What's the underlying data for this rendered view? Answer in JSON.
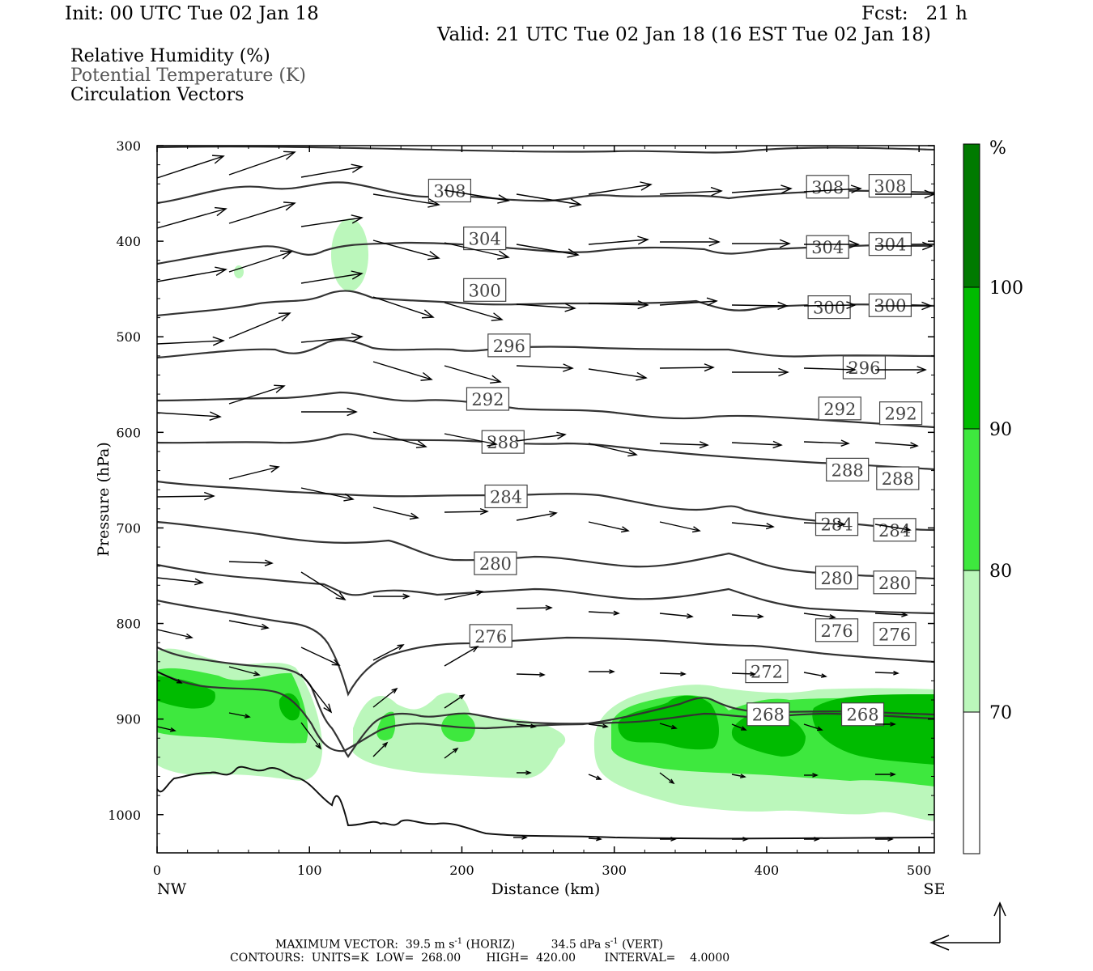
{
  "header": {
    "init": "Init: 00 UTC Tue 02 Jan 18",
    "fcst": "Fcst:   21 h",
    "valid": "Valid: 21 UTC Tue 02 Jan 18 (16 EST Tue 02 Jan 18)"
  },
  "legend": {
    "rh": "Relative Humidity (%)",
    "theta": "Potential Temperature (K)",
    "vectors": "Circulation Vectors"
  },
  "footer": {
    "max_vector_prefix": "MAXIMUM VECTOR:  39.5 m s",
    "max_vector_horiz": "(HORIZ)",
    "max_vector_vert_prefix": "34.5 dPa s",
    "max_vector_vert": "(VERT)",
    "exp": "-1",
    "contours": "CONTOURS:  UNITS=K  LOW=  268.00       HIGH=  420.00        INTERVAL=    4.0000"
  },
  "chart_data": {
    "type": "cross-section",
    "xlabel": "Distance (km)",
    "ylabel": "Pressure (hPa)",
    "x_ticks": [
      0,
      100,
      200,
      300,
      400,
      500
    ],
    "y_ticks": [
      300,
      400,
      500,
      600,
      700,
      800,
      900,
      1000
    ],
    "xlim": [
      0,
      510
    ],
    "ylim": [
      300,
      1040
    ],
    "y_reversed": true,
    "x_end_labels": {
      "left": "NW",
      "right": "SE"
    },
    "colorbar": {
      "unit": "%",
      "levels": [
        70,
        80,
        90,
        100
      ],
      "colors": [
        "#ffffff",
        "#bbf7bb",
        "#3ee83e",
        "#00bb00",
        "#007a00"
      ]
    },
    "theta_contour_labels": [
      {
        "value": "308",
        "x": 192,
        "p": 347
      },
      {
        "value": "308",
        "x": 440,
        "p": 343
      },
      {
        "value": "308",
        "x": 481,
        "p": 342
      },
      {
        "value": "304",
        "x": 215,
        "p": 397
      },
      {
        "value": "304",
        "x": 440,
        "p": 406
      },
      {
        "value": "304",
        "x": 481,
        "p": 403
      },
      {
        "value": "300",
        "x": 215,
        "p": 451
      },
      {
        "value": "300",
        "x": 441,
        "p": 469
      },
      {
        "value": "300",
        "x": 481,
        "p": 467
      },
      {
        "value": "296",
        "x": 231,
        "p": 509
      },
      {
        "value": "296",
        "x": 464,
        "p": 532
      },
      {
        "value": "292",
        "x": 217,
        "p": 565
      },
      {
        "value": "292",
        "x": 448,
        "p": 575
      },
      {
        "value": "292",
        "x": 488,
        "p": 580
      },
      {
        "value": "288",
        "x": 227,
        "p": 610
      },
      {
        "value": "288",
        "x": 453,
        "p": 639
      },
      {
        "value": "288",
        "x": 486,
        "p": 648
      },
      {
        "value": "284",
        "x": 229,
        "p": 667
      },
      {
        "value": "284",
        "x": 446,
        "p": 696
      },
      {
        "value": "284",
        "x": 484,
        "p": 702
      },
      {
        "value": "280",
        "x": 222,
        "p": 737
      },
      {
        "value": "280",
        "x": 446,
        "p": 752
      },
      {
        "value": "280",
        "x": 484,
        "p": 757
      },
      {
        "value": "276",
        "x": 219,
        "p": 813
      },
      {
        "value": "276",
        "x": 446,
        "p": 807
      },
      {
        "value": "276",
        "x": 484,
        "p": 811
      },
      {
        "value": "272",
        "x": 400,
        "p": 850
      },
      {
        "value": "268",
        "x": 401,
        "p": 895
      },
      {
        "value": "268",
        "x": 463,
        "p": 895
      }
    ]
  }
}
